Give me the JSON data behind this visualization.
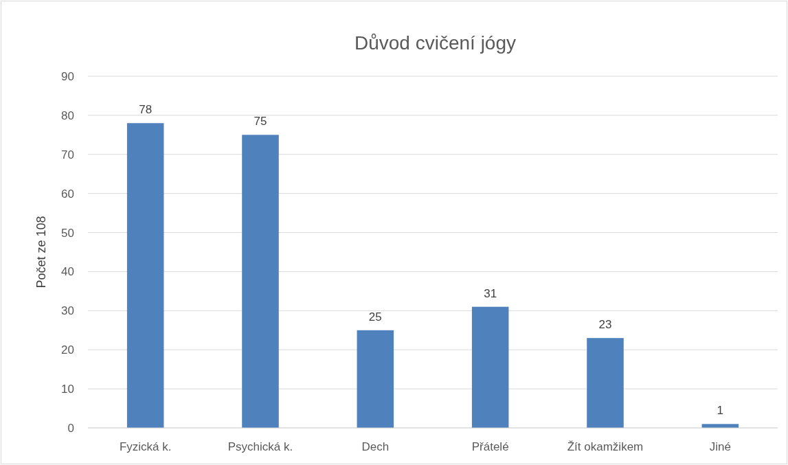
{
  "chart_data": {
    "type": "bar",
    "title": "Důvod cvičení jógy",
    "ylabel": "Počet ze 108",
    "categories": [
      "Fyzická k.",
      "Psychická k.",
      "Dech",
      "Přátelé",
      "Žít okamžikem",
      "Jiné"
    ],
    "values": [
      78,
      75,
      25,
      31,
      23,
      1
    ],
    "color": "#4f81bd",
    "ylim": [
      0,
      90
    ],
    "yticks": [
      0,
      10,
      20,
      30,
      40,
      50,
      60,
      70,
      80,
      90
    ],
    "grid": "y",
    "data_labels": true
  }
}
